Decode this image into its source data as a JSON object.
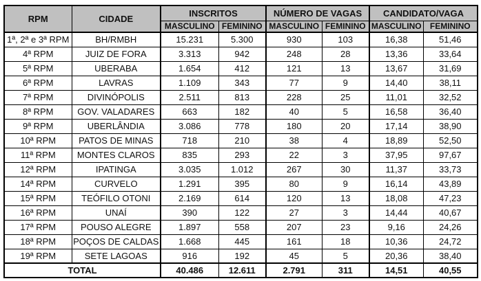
{
  "colors": {
    "page_bg": "#ffffff",
    "header_bg": "#c0c0c0",
    "border": "#000000",
    "text": "#111111"
  },
  "table": {
    "headers": {
      "rpm": "RPM",
      "cidade": "CIDADE",
      "groups": [
        "INSCRITOS",
        "NÚMERO DE VAGAS",
        "CANDIDATO/VAGA"
      ],
      "masculino": "MASCULINO",
      "feminino": "FEMININO"
    },
    "rows": [
      {
        "rpm": "1ª, 2ª e 3ª RPM",
        "cidade": "BH/RMBH",
        "insc_m": "15.231",
        "insc_f": "5.300",
        "vagas_m": "930",
        "vagas_f": "103",
        "cand_m": "16,38",
        "cand_f": "51,46"
      },
      {
        "rpm": "4ª RPM",
        "cidade": "JUIZ DE FORA",
        "insc_m": "3.313",
        "insc_f": "942",
        "vagas_m": "248",
        "vagas_f": "28",
        "cand_m": "13,36",
        "cand_f": "33,64"
      },
      {
        "rpm": "5ª RPM",
        "cidade": "UBERABA",
        "insc_m": "1.654",
        "insc_f": "412",
        "vagas_m": "121",
        "vagas_f": "13",
        "cand_m": "13,67",
        "cand_f": "31,69"
      },
      {
        "rpm": "6ª RPM",
        "cidade": "LAVRAS",
        "insc_m": "1.109",
        "insc_f": "343",
        "vagas_m": "77",
        "vagas_f": "9",
        "cand_m": "14,40",
        "cand_f": "38,11"
      },
      {
        "rpm": "7ª RPM",
        "cidade": "DIVINÓPOLIS",
        "insc_m": "2.511",
        "insc_f": "813",
        "vagas_m": "228",
        "vagas_f": "25",
        "cand_m": "11,01",
        "cand_f": "32,52"
      },
      {
        "rpm": "8ª RPM",
        "cidade": "GOV. VALADARES",
        "insc_m": "663",
        "insc_f": "182",
        "vagas_m": "40",
        "vagas_f": "5",
        "cand_m": "16,58",
        "cand_f": "36,40"
      },
      {
        "rpm": "9ª RPM",
        "cidade": "UBERLÂNDIA",
        "insc_m": "3.086",
        "insc_f": "778",
        "vagas_m": "180",
        "vagas_f": "20",
        "cand_m": "17,14",
        "cand_f": "38,90"
      },
      {
        "rpm": "10ª RPM",
        "cidade": "PATOS DE MINAS",
        "insc_m": "718",
        "insc_f": "210",
        "vagas_m": "38",
        "vagas_f": "4",
        "cand_m": "18,89",
        "cand_f": "52,50"
      },
      {
        "rpm": "11ª RPM",
        "cidade": "MONTES CLAROS",
        "insc_m": "835",
        "insc_f": "293",
        "vagas_m": "22",
        "vagas_f": "3",
        "cand_m": "37,95",
        "cand_f": "97,67"
      },
      {
        "rpm": "12ª RPM",
        "cidade": "IPATINGA",
        "insc_m": "3.035",
        "insc_f": "1.012",
        "vagas_m": "267",
        "vagas_f": "30",
        "cand_m": "11,37",
        "cand_f": "33,73"
      },
      {
        "rpm": "14ª RPM",
        "cidade": "CURVELO",
        "insc_m": "1.291",
        "insc_f": "395",
        "vagas_m": "80",
        "vagas_f": "9",
        "cand_m": "16,14",
        "cand_f": "43,89"
      },
      {
        "rpm": "15ª RPM",
        "cidade": "TEÓFILO OTONI",
        "insc_m": "2.169",
        "insc_f": "614",
        "vagas_m": "120",
        "vagas_f": "13",
        "cand_m": "18,08",
        "cand_f": "47,23"
      },
      {
        "rpm": "16ª RPM",
        "cidade": "UNAÍ",
        "insc_m": "390",
        "insc_f": "122",
        "vagas_m": "27",
        "vagas_f": "3",
        "cand_m": "14,44",
        "cand_f": "40,67"
      },
      {
        "rpm": "17ª RPM",
        "cidade": "POUSO ALEGRE",
        "insc_m": "1.897",
        "insc_f": "558",
        "vagas_m": "207",
        "vagas_f": "23",
        "cand_m": "9,16",
        "cand_f": "24,26"
      },
      {
        "rpm": "18ª RPM",
        "cidade": "POÇOS DE CALDAS",
        "insc_m": "1.668",
        "insc_f": "445",
        "vagas_m": "161",
        "vagas_f": "18",
        "cand_m": "10,36",
        "cand_f": "24,72"
      },
      {
        "rpm": "19ª RPM",
        "cidade": "SETE LAGOAS",
        "insc_m": "916",
        "insc_f": "192",
        "vagas_m": "45",
        "vagas_f": "5",
        "cand_m": "20,36",
        "cand_f": "38,40"
      }
    ],
    "total": {
      "label": "TOTAL",
      "insc_m": "40.486",
      "insc_f": "12.611",
      "vagas_m": "2.791",
      "vagas_f": "311",
      "cand_m": "14,51",
      "cand_f": "40,55"
    }
  }
}
